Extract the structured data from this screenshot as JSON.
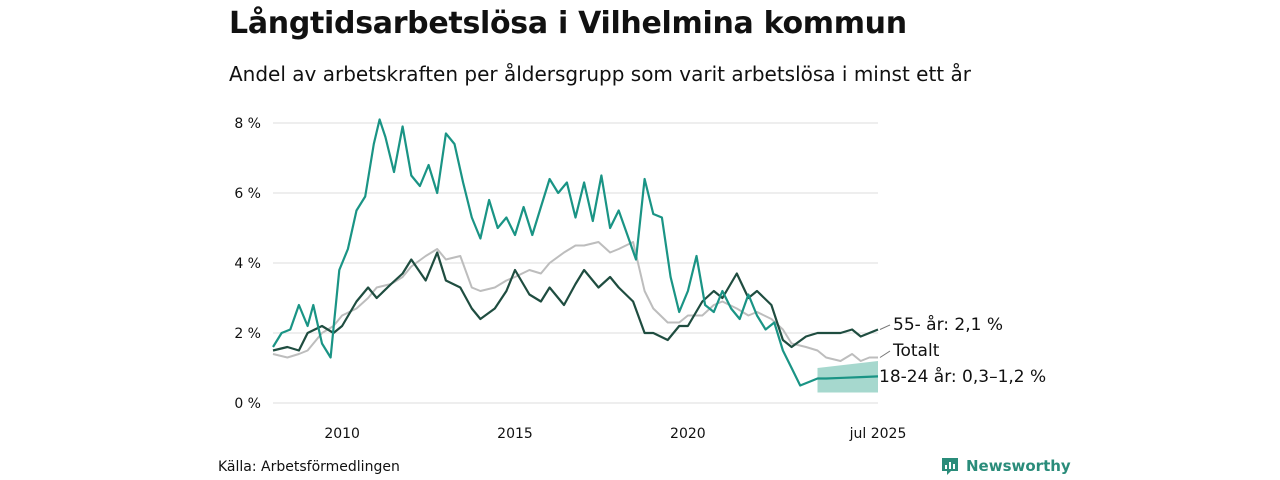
{
  "header": {
    "title": "Långtidsarbetslösa i Vilhelmina kommun",
    "subtitle": "Andel av arbetskraften per åldersgrupp som varit arbetslösa i minst ett år"
  },
  "footer": {
    "source": "Källa: Arbetsförmedlingen",
    "brand": "Newsworthy"
  },
  "colors": {
    "youth": "#1a9485",
    "older": "#1f4d40",
    "total": "#bdbdbd",
    "band": "#5cb8a6",
    "grid": "#dddddd",
    "brand": "#2a8c7a"
  },
  "chart_data": {
    "type": "line",
    "x_start": "2008-01",
    "x_end": "2025-07",
    "xlim": [
      "2008-01",
      "2025-07"
    ],
    "ylim": [
      0,
      8.5
    ],
    "y_unit": "%",
    "y_ticks": [
      {
        "value": 0,
        "label": "0 %"
      },
      {
        "value": 2,
        "label": "2 %"
      },
      {
        "value": 4,
        "label": "4 %"
      },
      {
        "value": 6,
        "label": "6 %"
      },
      {
        "value": 8,
        "label": "8 %"
      }
    ],
    "x_ticks": [
      {
        "date": "2010-01",
        "label": "2010"
      },
      {
        "date": "2015-01",
        "label": "2015"
      },
      {
        "date": "2020-01",
        "label": "2020"
      },
      {
        "date": "2025-07",
        "label": "jul 2025"
      }
    ],
    "grid": "horizontal",
    "series": [
      {
        "key": "youth",
        "end_label": "18-24 år: 0,3–1,2 %",
        "points": [
          [
            "2008-01",
            1.6
          ],
          [
            "2008-04",
            2.0
          ],
          [
            "2008-07",
            2.1
          ],
          [
            "2008-10",
            2.8
          ],
          [
            "2009-01",
            2.2
          ],
          [
            "2009-03",
            2.8
          ],
          [
            "2009-06",
            1.7
          ],
          [
            "2009-09",
            1.3
          ],
          [
            "2009-12",
            3.8
          ],
          [
            "2010-03",
            4.4
          ],
          [
            "2010-06",
            5.5
          ],
          [
            "2010-09",
            5.9
          ],
          [
            "2010-12",
            7.4
          ],
          [
            "2011-02",
            8.1
          ],
          [
            "2011-04",
            7.6
          ],
          [
            "2011-07",
            6.6
          ],
          [
            "2011-10",
            7.9
          ],
          [
            "2012-01",
            6.5
          ],
          [
            "2012-04",
            6.2
          ],
          [
            "2012-07",
            6.8
          ],
          [
            "2012-10",
            6.0
          ],
          [
            "2013-01",
            7.7
          ],
          [
            "2013-04",
            7.4
          ],
          [
            "2013-07",
            6.3
          ],
          [
            "2013-10",
            5.3
          ],
          [
            "2014-01",
            4.7
          ],
          [
            "2014-04",
            5.8
          ],
          [
            "2014-07",
            5.0
          ],
          [
            "2014-10",
            5.3
          ],
          [
            "2015-01",
            4.8
          ],
          [
            "2015-04",
            5.6
          ],
          [
            "2015-07",
            4.8
          ],
          [
            "2015-10",
            5.6
          ],
          [
            "2016-01",
            6.4
          ],
          [
            "2016-04",
            6.0
          ],
          [
            "2016-07",
            6.3
          ],
          [
            "2016-10",
            5.3
          ],
          [
            "2017-01",
            6.3
          ],
          [
            "2017-04",
            5.2
          ],
          [
            "2017-07",
            6.5
          ],
          [
            "2017-10",
            5.0
          ],
          [
            "2018-01",
            5.5
          ],
          [
            "2018-04",
            4.8
          ],
          [
            "2018-07",
            4.1
          ],
          [
            "2018-10",
            6.4
          ],
          [
            "2019-01",
            5.4
          ],
          [
            "2019-04",
            5.3
          ],
          [
            "2019-07",
            3.6
          ],
          [
            "2019-10",
            2.6
          ],
          [
            "2020-01",
            3.2
          ],
          [
            "2020-04",
            4.2
          ],
          [
            "2020-07",
            2.8
          ],
          [
            "2020-10",
            2.6
          ],
          [
            "2021-01",
            3.2
          ],
          [
            "2021-04",
            2.7
          ],
          [
            "2021-07",
            2.4
          ],
          [
            "2021-10",
            3.1
          ],
          [
            "2022-01",
            2.5
          ],
          [
            "2022-04",
            2.1
          ],
          [
            "2022-07",
            2.3
          ],
          [
            "2022-10",
            1.5
          ],
          [
            "2023-01",
            1.0
          ],
          [
            "2023-04",
            0.5
          ],
          [
            "2023-07",
            0.6
          ],
          [
            "2023-10",
            0.7
          ],
          [
            "2024-01",
            0.7
          ],
          [
            "2024-07",
            0.72
          ],
          [
            "2025-01",
            0.74
          ],
          [
            "2025-07",
            0.76
          ]
        ],
        "band": [
          [
            "2023-10",
            0.3,
            1.0
          ],
          [
            "2025-07",
            0.3,
            1.2
          ]
        ]
      },
      {
        "key": "older",
        "end_label": "55- år: 2,1 %",
        "points": [
          [
            "2008-01",
            1.5
          ],
          [
            "2008-06",
            1.6
          ],
          [
            "2008-10",
            1.5
          ],
          [
            "2009-01",
            2.0
          ],
          [
            "2009-06",
            2.2
          ],
          [
            "2009-10",
            2.0
          ],
          [
            "2010-01",
            2.2
          ],
          [
            "2010-06",
            2.9
          ],
          [
            "2010-10",
            3.3
          ],
          [
            "2011-01",
            3.0
          ],
          [
            "2011-06",
            3.4
          ],
          [
            "2011-10",
            3.7
          ],
          [
            "2012-01",
            4.1
          ],
          [
            "2012-06",
            3.5
          ],
          [
            "2012-10",
            4.3
          ],
          [
            "2013-01",
            3.5
          ],
          [
            "2013-06",
            3.3
          ],
          [
            "2013-10",
            2.7
          ],
          [
            "2014-01",
            2.4
          ],
          [
            "2014-06",
            2.7
          ],
          [
            "2014-10",
            3.2
          ],
          [
            "2015-01",
            3.8
          ],
          [
            "2015-06",
            3.1
          ],
          [
            "2015-10",
            2.9
          ],
          [
            "2016-01",
            3.3
          ],
          [
            "2016-06",
            2.8
          ],
          [
            "2016-10",
            3.4
          ],
          [
            "2017-01",
            3.8
          ],
          [
            "2017-06",
            3.3
          ],
          [
            "2017-10",
            3.6
          ],
          [
            "2018-01",
            3.3
          ],
          [
            "2018-06",
            2.9
          ],
          [
            "2018-10",
            2.0
          ],
          [
            "2019-01",
            2.0
          ],
          [
            "2019-06",
            1.8
          ],
          [
            "2019-10",
            2.2
          ],
          [
            "2020-01",
            2.2
          ],
          [
            "2020-06",
            2.9
          ],
          [
            "2020-10",
            3.2
          ],
          [
            "2021-01",
            3.0
          ],
          [
            "2021-06",
            3.7
          ],
          [
            "2021-10",
            3.0
          ],
          [
            "2022-01",
            3.2
          ],
          [
            "2022-06",
            2.8
          ],
          [
            "2022-10",
            1.8
          ],
          [
            "2023-01",
            1.6
          ],
          [
            "2023-06",
            1.9
          ],
          [
            "2023-10",
            2.0
          ],
          [
            "2024-01",
            2.0
          ],
          [
            "2024-06",
            2.0
          ],
          [
            "2024-10",
            2.1
          ],
          [
            "2025-01",
            1.9
          ],
          [
            "2025-04",
            2.0
          ],
          [
            "2025-07",
            2.1
          ]
        ]
      },
      {
        "key": "total",
        "end_label": "Totalt",
        "points": [
          [
            "2008-01",
            1.4
          ],
          [
            "2008-06",
            1.3
          ],
          [
            "2008-10",
            1.4
          ],
          [
            "2009-01",
            1.5
          ],
          [
            "2009-06",
            2.0
          ],
          [
            "2009-10",
            2.2
          ],
          [
            "2010-01",
            2.5
          ],
          [
            "2010-06",
            2.7
          ],
          [
            "2010-10",
            3.0
          ],
          [
            "2011-01",
            3.3
          ],
          [
            "2011-06",
            3.4
          ],
          [
            "2011-10",
            3.6
          ],
          [
            "2012-01",
            3.9
          ],
          [
            "2012-06",
            4.2
          ],
          [
            "2012-10",
            4.4
          ],
          [
            "2013-01",
            4.1
          ],
          [
            "2013-06",
            4.2
          ],
          [
            "2013-10",
            3.3
          ],
          [
            "2014-01",
            3.2
          ],
          [
            "2014-06",
            3.3
          ],
          [
            "2014-10",
            3.5
          ],
          [
            "2015-01",
            3.6
          ],
          [
            "2015-06",
            3.8
          ],
          [
            "2015-10",
            3.7
          ],
          [
            "2016-01",
            4.0
          ],
          [
            "2016-06",
            4.3
          ],
          [
            "2016-10",
            4.5
          ],
          [
            "2017-01",
            4.5
          ],
          [
            "2017-06",
            4.6
          ],
          [
            "2017-10",
            4.3
          ],
          [
            "2018-01",
            4.4
          ],
          [
            "2018-06",
            4.6
          ],
          [
            "2018-10",
            3.2
          ],
          [
            "2019-01",
            2.7
          ],
          [
            "2019-06",
            2.3
          ],
          [
            "2019-10",
            2.3
          ],
          [
            "2020-01",
            2.5
          ],
          [
            "2020-06",
            2.5
          ],
          [
            "2020-10",
            2.8
          ],
          [
            "2021-01",
            2.9
          ],
          [
            "2021-06",
            2.7
          ],
          [
            "2021-10",
            2.5
          ],
          [
            "2022-01",
            2.6
          ],
          [
            "2022-06",
            2.4
          ],
          [
            "2022-10",
            2.1
          ],
          [
            "2023-01",
            1.7
          ],
          [
            "2023-06",
            1.6
          ],
          [
            "2023-10",
            1.5
          ],
          [
            "2024-01",
            1.3
          ],
          [
            "2024-06",
            1.2
          ],
          [
            "2024-10",
            1.4
          ],
          [
            "2025-01",
            1.2
          ],
          [
            "2025-04",
            1.3
          ],
          [
            "2025-07",
            1.3
          ]
        ]
      }
    ]
  }
}
